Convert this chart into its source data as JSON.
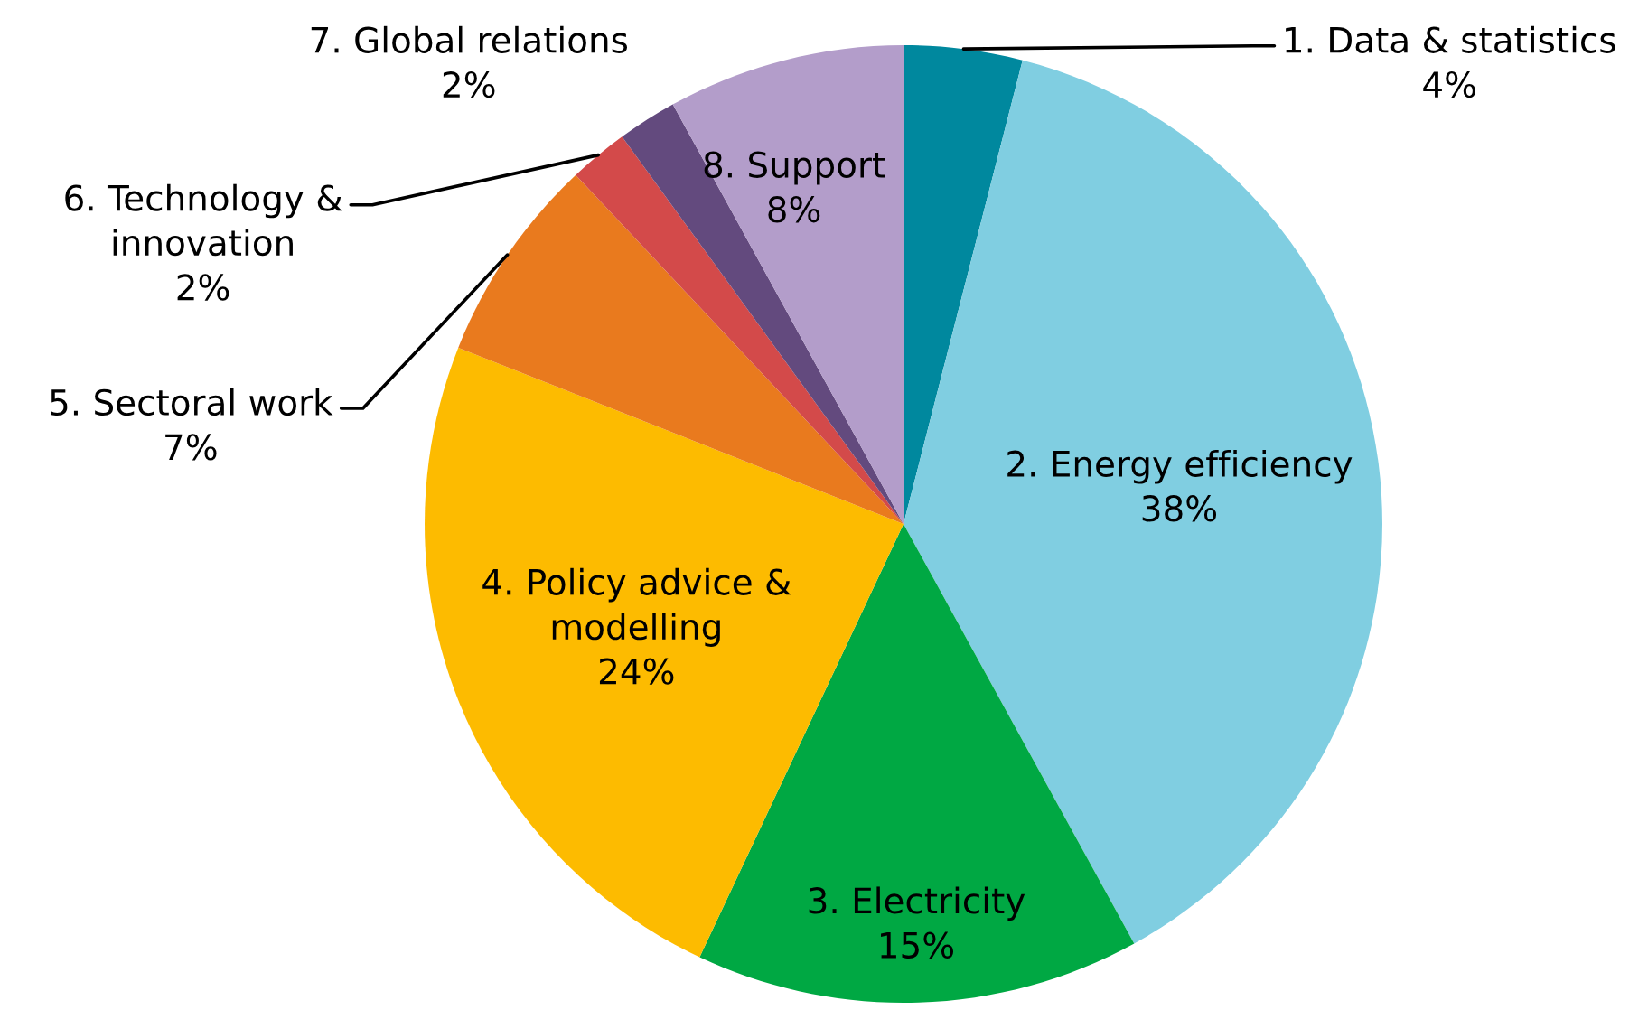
{
  "chart_data": {
    "type": "pie",
    "categories": [
      "1. Data & statistics",
      "2. Energy efficiency",
      "3. Electricity",
      "4. Policy advice &\nmodelling",
      "5. Sectoral work",
      "6. Technology &\ninnovation",
      "7. Global relations",
      "8. Support"
    ],
    "values": [
      4,
      38,
      15,
      24,
      7,
      2,
      2,
      8
    ],
    "colors": [
      "#00889e",
      "#80cee1",
      "#00a843",
      "#fdbb00",
      "#e97a1e",
      "#d34a4a",
      "#634a7e",
      "#b39dca"
    ],
    "value_labels": [
      "4%",
      "38%",
      "15%",
      "24%",
      "7%",
      "2%",
      "2%",
      "8%"
    ]
  }
}
